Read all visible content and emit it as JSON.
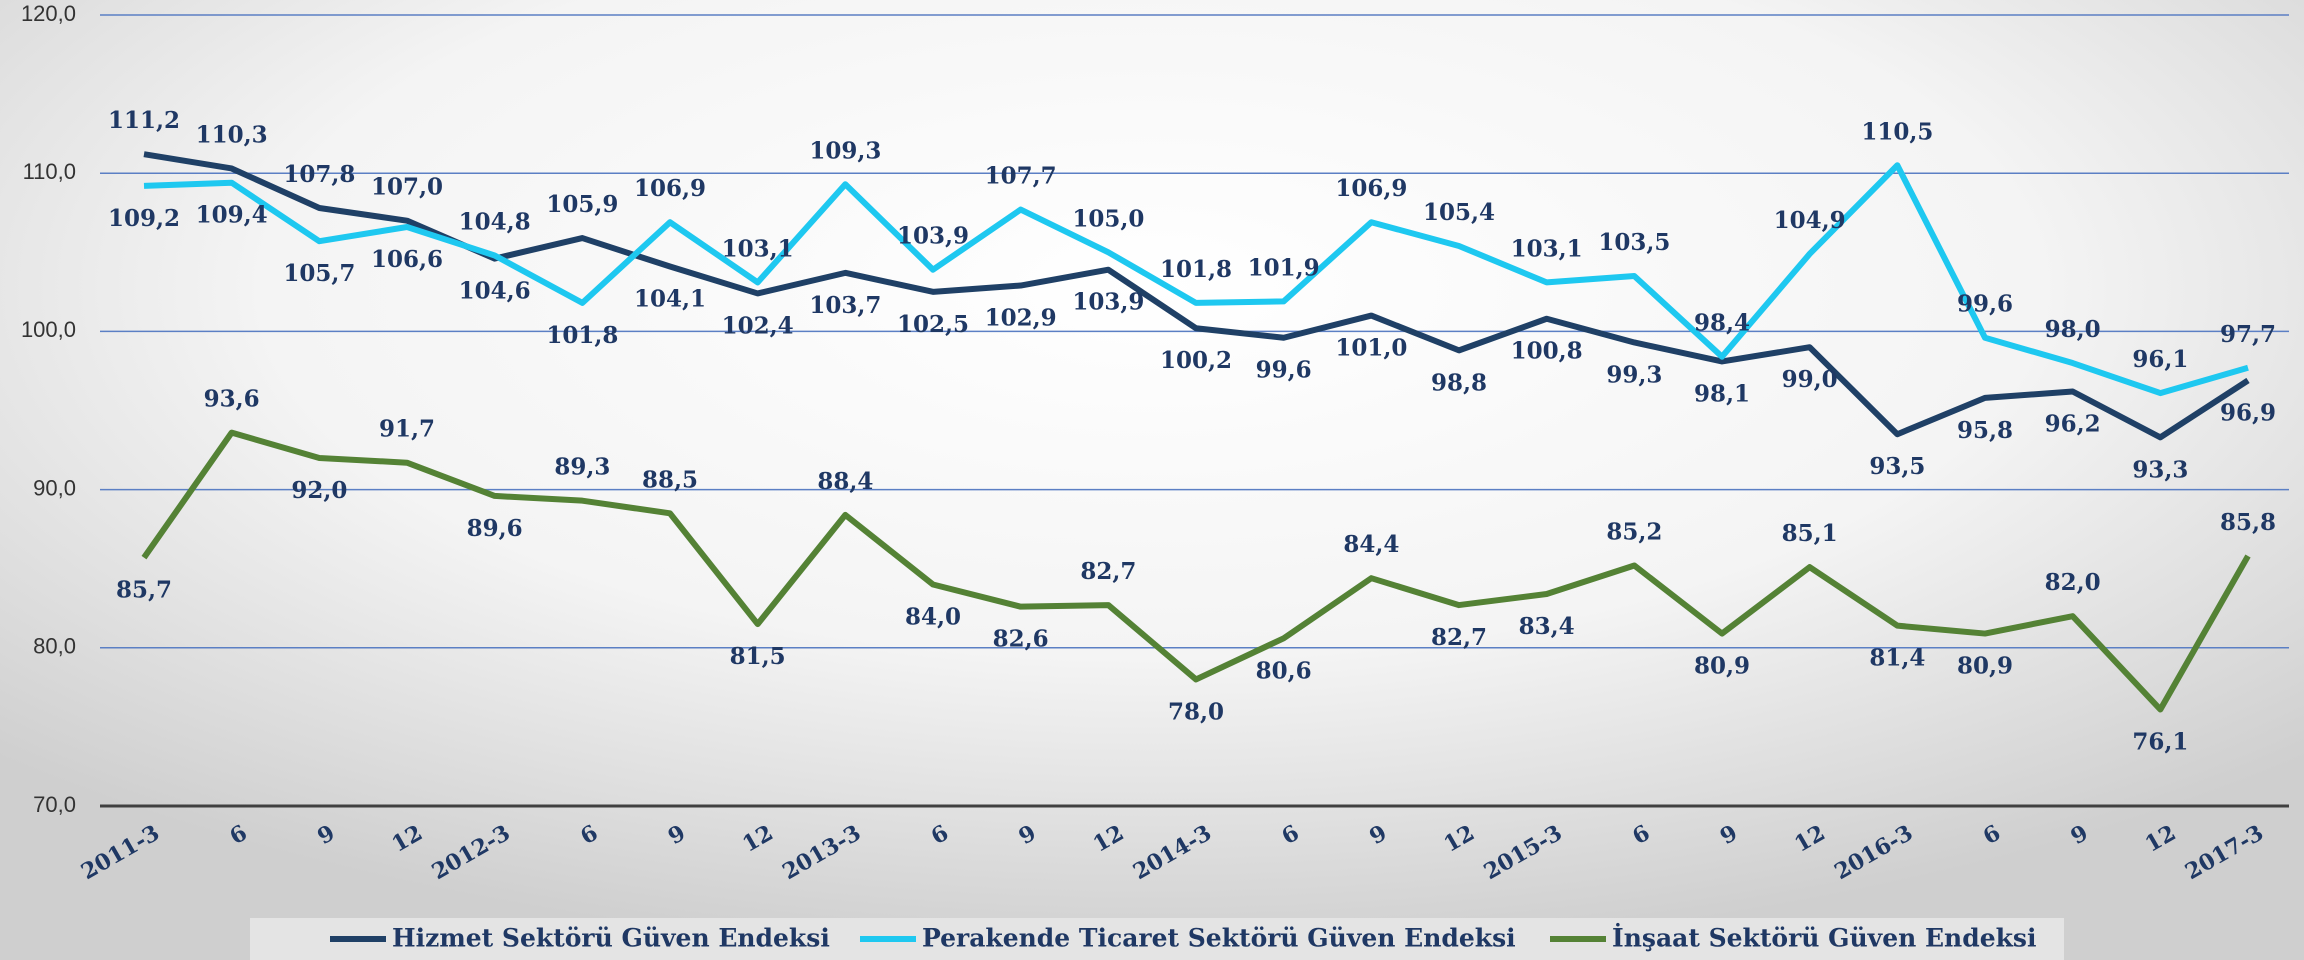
{
  "chart_data": {
    "type": "line",
    "categories": [
      "2011-3",
      "6",
      "9",
      "12",
      "2012-3",
      "6",
      "9",
      "12",
      "2013-3",
      "6",
      "9",
      "12",
      "2014-3",
      "6",
      "9",
      "12",
      "2015-3",
      "6",
      "9",
      "12",
      "2016-3",
      "6",
      "9",
      "12",
      "2017-3"
    ],
    "series": [
      {
        "name": "Hizmet Sektörü Güven Endeksi",
        "color": "#1f4066",
        "values": [
          111.2,
          110.3,
          107.8,
          107.0,
          104.6,
          105.9,
          104.1,
          102.4,
          103.7,
          102.5,
          102.9,
          103.9,
          100.2,
          99.6,
          101.0,
          98.8,
          100.8,
          99.3,
          98.1,
          99.0,
          93.5,
          95.8,
          96.2,
          93.3,
          96.9
        ],
        "value_labels": [
          "111,2",
          "110,3",
          "107,8",
          "107,0",
          "104,6",
          "105,9",
          "104,1",
          "102,4",
          "103,7",
          "102,5",
          "102,9",
          "103,9",
          "100,2",
          "99,6",
          "101,0",
          "98,8",
          "100,8",
          "99,3",
          "98,1",
          "99,0",
          "93,5",
          "95,8",
          "96,2",
          "93,3",
          "96,9"
        ]
      },
      {
        "name": "Perakende Ticaret Sektörü Güven Endeksi",
        "color": "#1ec8f0",
        "values": [
          109.2,
          109.4,
          105.7,
          106.6,
          104.8,
          101.8,
          106.9,
          103.1,
          109.3,
          103.9,
          107.7,
          105.0,
          101.8,
          101.9,
          106.9,
          105.4,
          103.1,
          103.5,
          98.4,
          104.9,
          110.5,
          99.6,
          98.0,
          96.1,
          97.7
        ],
        "value_labels": [
          "109,2",
          "109,4",
          "105,7",
          "106,6",
          "104,8",
          "101,8",
          "106,9",
          "103,1",
          "109,3",
          "103,9",
          "107,7",
          "105,0",
          "101,8",
          "101,9",
          "106,9",
          "105,4",
          "103,1",
          "103,5",
          "98,4",
          "104,9",
          "110,5",
          "99,6",
          "98,0",
          "96,1",
          "97,7"
        ]
      },
      {
        "name": "İnşaat Sektörü Güven Endeksi",
        "color": "#548235",
        "values": [
          85.7,
          93.6,
          92.0,
          91.7,
          89.6,
          89.3,
          88.5,
          81.5,
          88.4,
          84.0,
          82.6,
          82.7,
          78.0,
          80.6,
          84.4,
          82.7,
          83.4,
          85.2,
          80.9,
          85.1,
          81.4,
          80.9,
          82.0,
          76.1,
          85.8
        ],
        "value_labels": [
          "85,7",
          "93,6",
          "92,0",
          "91,7",
          "89,6",
          "89,3",
          "88,5",
          "81,5",
          "88,4",
          "84,0",
          "82,6",
          "82,7",
          "78,0",
          "80,6",
          "84,4",
          "82,7",
          "83,4",
          "85,2",
          "80,9",
          "85,1",
          "81,4",
          "80,9",
          "82,0",
          "76,1",
          "85,8"
        ]
      }
    ],
    "ylim": [
      70,
      120
    ],
    "yticks": [
      {
        "value": 70,
        "label": "70,0"
      },
      {
        "value": 80,
        "label": "80,0"
      },
      {
        "value": 90,
        "label": "90,0"
      },
      {
        "value": 100,
        "label": "100,0"
      },
      {
        "value": 110,
        "label": "110,0"
      },
      {
        "value": 120,
        "label": "120,0"
      }
    ],
    "grid": true,
    "legend": "bottom"
  }
}
